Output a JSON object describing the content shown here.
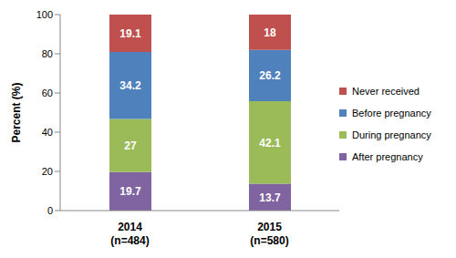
{
  "chart_data": {
    "type": "bar",
    "stacked": true,
    "data_labels": true,
    "grid": false,
    "legend": "right",
    "y_label": "Percent (%)",
    "categories": [
      "2014\n(n=484)",
      "2015\n(n=580)"
    ],
    "series": [
      {
        "name": "After pregnancy",
        "color": "#8064a2",
        "values": [
          19.7,
          13.7
        ]
      },
      {
        "name": "During pregnancy",
        "color": "#9bbb59",
        "values": [
          27.0,
          42.1
        ]
      },
      {
        "name": "Before pregnancy",
        "color": "#4f81bd",
        "values": [
          34.2,
          26.2
        ]
      },
      {
        "name": "Never received",
        "color": "#c0504d",
        "values": [
          19.1,
          18.0
        ]
      }
    ],
    "ylim": [
      0,
      100
    ],
    "yticks": [
      0,
      20,
      40,
      60,
      80,
      100
    ]
  }
}
